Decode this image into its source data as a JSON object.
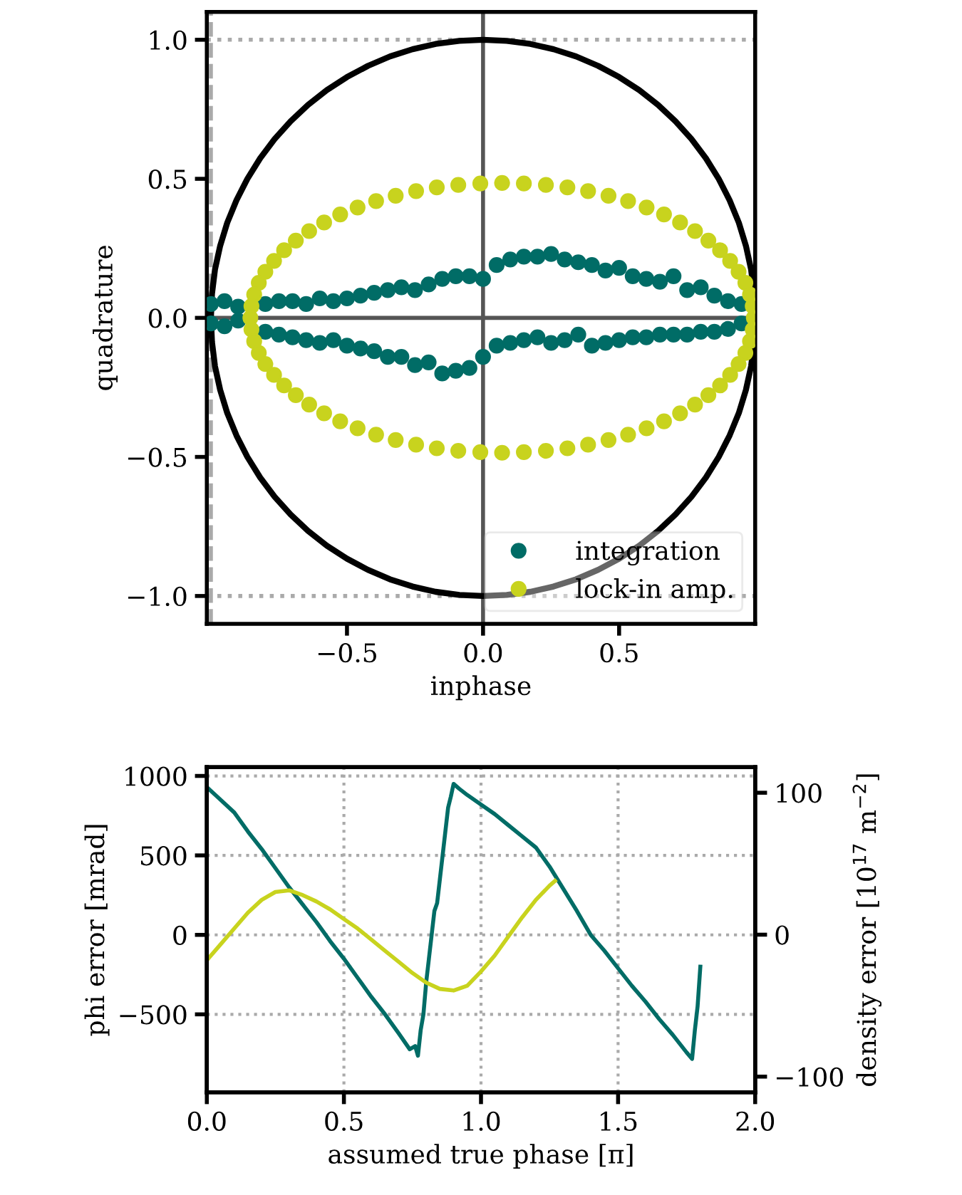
{
  "chart_data": [
    {
      "type": "scatter",
      "xlabel": "inphase",
      "ylabel": "quadrature",
      "xlim": [
        -1.015,
        1.0
      ],
      "ylim": [
        -1.1,
        1.1
      ],
      "xticks": [
        {
          "value": -0.5,
          "label": "−0.5"
        },
        {
          "value": 0,
          "label": "0.0"
        },
        {
          "value": 0.5,
          "label": "0.5"
        }
      ],
      "yticks": [
        {
          "value": -1,
          "label": "−1.0"
        },
        {
          "value": -0.5,
          "label": "−0.5"
        },
        {
          "value": 0,
          "label": "0.0"
        },
        {
          "value": 0.5,
          "label": "0.5"
        },
        {
          "value": 1,
          "label": "1.0"
        }
      ],
      "grid": false,
      "legend": "bottom right",
      "marker": "circle",
      "ref_lines": [
        {
          "axis": "x",
          "value": 0,
          "color": "#555555",
          "line_style": "solid"
        },
        {
          "axis": "y",
          "value": 0,
          "color": "#555555",
          "line_style": "solid"
        },
        {
          "axis": "y",
          "value": 1,
          "color": "#aaaaaa",
          "line_style": "dotted"
        },
        {
          "axis": "y",
          "value": -1,
          "color": "#aaaaaa",
          "line_style": "dotted"
        },
        {
          "axis": "x",
          "value": -1,
          "color": "#aaaaaa",
          "line_style": "dashed"
        }
      ],
      "series": [
        {
          "type": "line",
          "marker": "none",
          "color": "#000000",
          "x": [
            1,
            0.996,
            0.985,
            0.966,
            0.94,
            0.906,
            0.866,
            0.819,
            0.766,
            0.707,
            0.643,
            0.574,
            0.5,
            0.423,
            0.342,
            0.259,
            0.174,
            0.087,
            0,
            -0.087,
            -0.174,
            -0.259,
            -0.342,
            -0.423,
            -0.5,
            -0.574,
            -0.643,
            -0.707,
            -0.766,
            -0.819,
            -0.866,
            -0.906,
            -0.94,
            -0.966,
            -0.985,
            -0.996,
            -1,
            -0.996,
            -0.985,
            -0.966,
            -0.94,
            -0.906,
            -0.866,
            -0.819,
            -0.766,
            -0.707,
            -0.643,
            -0.574,
            -0.5,
            -0.423,
            -0.342,
            -0.259,
            -0.174,
            -0.087,
            0,
            0.087,
            0.174,
            0.259,
            0.342,
            0.423,
            0.5,
            0.574,
            0.643,
            0.707,
            0.766,
            0.819,
            0.866,
            0.906,
            0.94,
            0.966,
            0.985,
            0.996
          ],
          "values": [
            0,
            0.087,
            0.174,
            0.259,
            0.342,
            0.423,
            0.5,
            0.574,
            0.643,
            0.707,
            0.766,
            0.819,
            0.866,
            0.906,
            0.94,
            0.966,
            0.985,
            0.996,
            1,
            0.996,
            0.985,
            0.966,
            0.94,
            0.906,
            0.866,
            0.819,
            0.766,
            0.707,
            0.643,
            0.574,
            0.5,
            0.423,
            0.342,
            0.259,
            0.174,
            0.087,
            0,
            -0.087,
            -0.174,
            -0.259,
            -0.342,
            -0.423,
            -0.5,
            -0.574,
            -0.643,
            -0.707,
            -0.766,
            -0.819,
            -0.866,
            -0.906,
            -0.94,
            -0.966,
            -0.985,
            -0.996,
            -1,
            -0.996,
            -0.985,
            -0.966,
            -0.94,
            -0.906,
            -0.866,
            -0.819,
            -0.766,
            -0.707,
            -0.643,
            -0.574,
            -0.5,
            -0.423,
            -0.342,
            -0.259,
            -0.174,
            -0.087
          ]
        },
        {
          "name": "integration",
          "color": "#006c66",
          "x": [
            -1.0,
            -0.95,
            -0.9,
            -0.85,
            -0.8,
            -0.75,
            -0.7,
            -0.65,
            -0.6,
            -0.55,
            -0.5,
            -0.45,
            -0.4,
            -0.35,
            -0.3,
            -0.25,
            -0.2,
            -0.15,
            -0.1,
            -0.05,
            0.0,
            0.05,
            0.1,
            0.15,
            0.2,
            0.25,
            0.3,
            0.35,
            0.4,
            0.45,
            0.5,
            0.55,
            0.6,
            0.65,
            0.7,
            0.75,
            0.8,
            0.85,
            0.9,
            0.95,
            -1.0,
            -0.95,
            -0.9,
            -0.85,
            -0.8,
            -0.75,
            -0.7,
            -0.65,
            -0.6,
            -0.55,
            -0.5,
            -0.45,
            -0.4,
            -0.35,
            -0.3,
            -0.25,
            -0.2,
            -0.15,
            -0.1,
            -0.05,
            0.0,
            0.05,
            0.1,
            0.15,
            0.2,
            0.25,
            0.3,
            0.35,
            0.4,
            0.45,
            0.5,
            0.55,
            0.6,
            0.65,
            0.7,
            0.75,
            0.8,
            0.85,
            0.9,
            0.95
          ],
          "values": [
            0.05,
            0.06,
            0.04,
            null,
            0.05,
            0.06,
            0.06,
            0.05,
            0.07,
            0.06,
            0.07,
            0.08,
            0.09,
            0.1,
            0.11,
            0.1,
            0.12,
            0.14,
            0.15,
            0.15,
            0.14,
            0.19,
            0.21,
            0.22,
            0.22,
            0.23,
            0.21,
            0.2,
            0.19,
            0.17,
            0.18,
            0.15,
            0.14,
            0.13,
            0.15,
            0.1,
            0.11,
            0.08,
            0.06,
            0.05,
            -0.02,
            -0.03,
            -0.01,
            null,
            -0.05,
            -0.06,
            -0.07,
            -0.08,
            -0.09,
            -0.08,
            -0.1,
            -0.11,
            -0.12,
            -0.14,
            -0.14,
            -0.17,
            -0.16,
            -0.2,
            -0.19,
            -0.18,
            -0.14,
            -0.1,
            -0.09,
            -0.08,
            -0.07,
            -0.09,
            -0.08,
            -0.06,
            -0.1,
            -0.09,
            -0.08,
            -0.07,
            -0.07,
            -0.06,
            -0.06,
            -0.06,
            -0.05,
            -0.05,
            -0.04,
            -0.02
          ]
        },
        {
          "name": "lock-in amp.",
          "color": "#c8d31e",
          "x": [
            0.995,
            0.991,
            0.981,
            0.964,
            0.939,
            0.908,
            0.871,
            0.828,
            0.779,
            0.724,
            0.665,
            0.601,
            0.533,
            0.461,
            0.386,
            0.31,
            0.231,
            0.15,
            0.07,
            -0.01,
            -0.091,
            -0.17,
            -0.246,
            -0.321,
            -0.393,
            -0.461,
            -0.525,
            -0.584,
            -0.639,
            -0.688,
            -0.731,
            -0.768,
            -0.8,
            -0.824,
            -0.841,
            -0.851,
            -0.855,
            -0.851,
            -0.841,
            -0.824,
            -0.8,
            -0.768,
            -0.731,
            -0.688,
            -0.639,
            -0.584,
            -0.525,
            -0.461,
            -0.393,
            -0.321,
            -0.246,
            -0.17,
            -0.091,
            -0.01,
            0.07,
            0.15,
            0.231,
            0.31,
            0.386,
            0.461,
            0.533,
            0.601,
            0.665,
            0.724,
            0.779,
            0.828,
            0.871,
            0.908,
            0.939,
            0.964,
            0.981,
            0.991
          ],
          "values": [
            0,
            0.042,
            0.084,
            0.126,
            0.166,
            0.205,
            0.243,
            0.278,
            0.312,
            0.343,
            0.372,
            0.397,
            0.42,
            0.439,
            0.456,
            0.469,
            0.478,
            0.483,
            0.485,
            0.483,
            0.478,
            0.469,
            0.456,
            0.439,
            0.42,
            0.397,
            0.372,
            0.343,
            0.312,
            0.278,
            0.243,
            0.205,
            0.166,
            0.126,
            0.084,
            0.042,
            0,
            -0.042,
            -0.084,
            -0.126,
            -0.166,
            -0.205,
            -0.243,
            -0.278,
            -0.312,
            -0.343,
            -0.372,
            -0.397,
            -0.42,
            -0.439,
            -0.456,
            -0.469,
            -0.478,
            -0.483,
            -0.485,
            -0.483,
            -0.478,
            -0.469,
            -0.456,
            -0.439,
            -0.42,
            -0.397,
            -0.372,
            -0.343,
            -0.312,
            -0.278,
            -0.243,
            -0.205,
            -0.166,
            -0.126,
            -0.084,
            -0.042
          ]
        }
      ]
    },
    {
      "type": "line",
      "xlabel": "assumed true phase [π]",
      "ylabel": "phi error [mrad]",
      "y2label": "density error [10$^{17}$ m$^{−2}$]",
      "xlim": [
        0,
        2
      ],
      "ylim": [
        -990,
        1055
      ],
      "y2lim": [
        -111,
        118
      ],
      "xticks": [
        {
          "value": 0,
          "label": "0.0"
        },
        {
          "value": 0.5,
          "label": "0.5"
        },
        {
          "value": 1,
          "label": "1.0"
        },
        {
          "value": 1.5,
          "label": "1.5"
        },
        {
          "value": 2,
          "label": "2.0"
        }
      ],
      "yticks": [
        {
          "value": -500,
          "label": "−500"
        },
        0,
        500,
        1000
      ],
      "y2ticks": [
        {
          "value": -100,
          "label": "−100"
        },
        0,
        100
      ],
      "grid": true,
      "line_style": "solid",
      "series": [
        {
          "color": "#006c66",
          "x": [
            0,
            0.05,
            0.1,
            0.15,
            0.2,
            0.25,
            0.3,
            0.35,
            0.4,
            0.45,
            0.5,
            0.55,
            0.6,
            0.65,
            0.7,
            0.74,
            0.76,
            0.77,
            0.78,
            0.79,
            0.8,
            0.81,
            0.82,
            0.83,
            0.84,
            0.85,
            0.86,
            0.87,
            0.88,
            0.89,
            0.9,
            0.92,
            0.95,
            1.0,
            1.05,
            1.1,
            1.15,
            1.2,
            1.25,
            1.3,
            1.35,
            1.4,
            1.45,
            1.5,
            1.55,
            1.6,
            1.65,
            1.7,
            1.75,
            1.77,
            1.78,
            1.79,
            1.8
          ],
          "values": [
            930,
            850,
            770,
            650,
            540,
            420,
            300,
            190,
            80,
            -40,
            -150,
            -270,
            -390,
            -500,
            -620,
            -720,
            -700,
            -760,
            -600,
            -500,
            -300,
            -150,
            0,
            150,
            200,
            350,
            500,
            650,
            800,
            870,
            950,
            920,
            880,
            820,
            760,
            690,
            620,
            550,
            430,
            290,
            150,
            0,
            -100,
            -210,
            -320,
            -420,
            -530,
            -630,
            -740,
            -780,
            -600,
            -450,
            -200
          ]
        },
        {
          "color": "#c8d31e",
          "x": [
            0,
            0.05,
            0.1,
            0.15,
            0.2,
            0.25,
            0.3,
            0.35,
            0.4,
            0.45,
            0.5,
            0.55,
            0.6,
            0.65,
            0.7,
            0.75,
            0.8,
            0.85,
            0.9,
            0.95,
            1.0,
            1.05,
            1.1,
            1.15,
            1.2,
            1.25,
            1.27
          ],
          "values": [
            -160,
            -60,
            40,
            140,
            220,
            270,
            280,
            250,
            210,
            160,
            100,
            40,
            -30,
            -100,
            -170,
            -240,
            -300,
            -340,
            -350,
            -320,
            -230,
            -130,
            -10,
            110,
            220,
            310,
            340
          ]
        }
      ]
    }
  ]
}
